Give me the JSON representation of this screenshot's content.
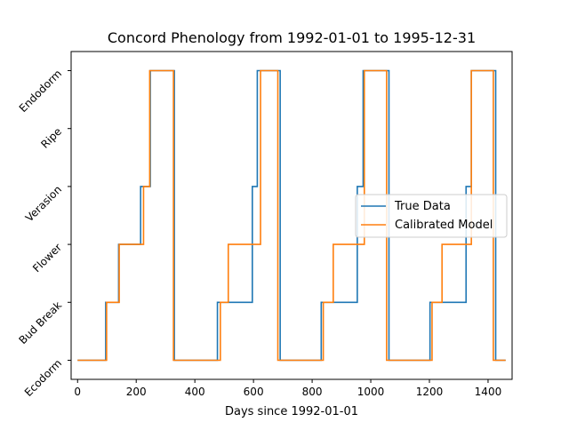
{
  "chart_data": {
    "type": "line",
    "title": "Concord Phenology from 1992-01-01 to 1995-12-31",
    "xlabel": "Days since 1992-01-01",
    "ylabel": "",
    "xlim": [
      -22,
      1482
    ],
    "ylim": [
      -0.33,
      5.33
    ],
    "x_ticks": [
      0,
      200,
      400,
      600,
      800,
      1000,
      1200,
      1400
    ],
    "y_categories": [
      "Ecodorm",
      "Bud Break",
      "Flower",
      "Verasion",
      "Ripe",
      "Endodorm"
    ],
    "legend_position": "center-right",
    "grid": false,
    "series": [
      {
        "name": "True Data",
        "color": "#1f77b4",
        "step_points": [
          [
            0,
            0
          ],
          [
            96,
            1
          ],
          [
            140,
            2
          ],
          [
            215,
            3
          ],
          [
            248,
            5
          ],
          [
            330,
            0
          ],
          [
            477,
            1
          ],
          [
            596,
            3
          ],
          [
            613,
            5
          ],
          [
            691,
            0
          ],
          [
            831,
            1
          ],
          [
            954,
            3
          ],
          [
            974,
            5
          ],
          [
            1062,
            0
          ],
          [
            1202,
            1
          ],
          [
            1325,
            3
          ],
          [
            1343,
            5
          ],
          [
            1426,
            0
          ],
          [
            1460,
            0
          ]
        ]
      },
      {
        "name": "Calibrated Model",
        "color": "#ff7f0e",
        "step_points": [
          [
            0,
            0
          ],
          [
            99,
            1
          ],
          [
            142,
            2
          ],
          [
            225,
            3
          ],
          [
            246,
            5
          ],
          [
            327,
            0
          ],
          [
            487,
            1
          ],
          [
            514,
            2
          ],
          [
            624,
            5
          ],
          [
            683,
            0
          ],
          [
            838,
            1
          ],
          [
            872,
            2
          ],
          [
            978,
            5
          ],
          [
            1054,
            0
          ],
          [
            1209,
            1
          ],
          [
            1243,
            2
          ],
          [
            1343,
            5
          ],
          [
            1418,
            0
          ],
          [
            1460,
            0
          ]
        ]
      }
    ]
  }
}
